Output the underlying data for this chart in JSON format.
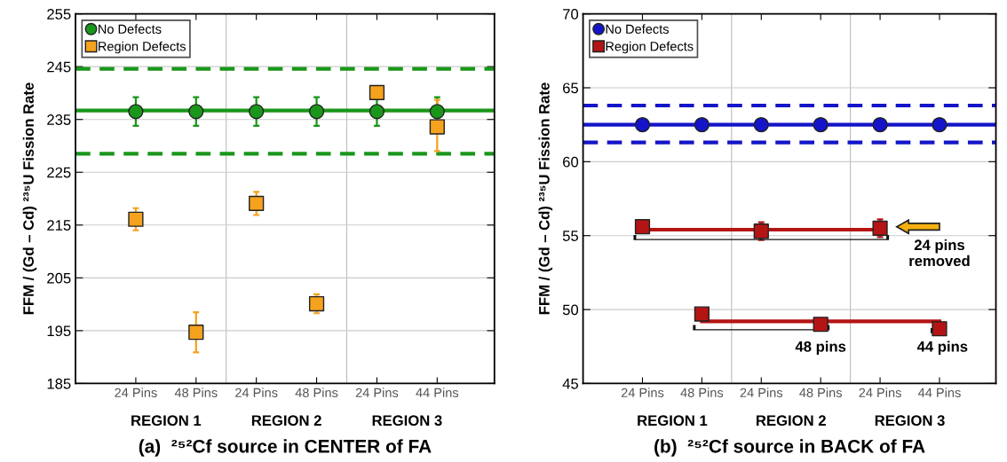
{
  "chart_data": [
    {
      "type": "scatter",
      "title": "(a)  ²⁵²Cf source in CENTER of FA",
      "ylabel": "FFM / (Gd – Cd) ²³⁵U Fission Rate",
      "categories": [
        "24 Pins",
        "48 Pins",
        "24 Pins",
        "48 Pins",
        "24 Pins",
        "44 Pins"
      ],
      "series": [
        {
          "name": "No Defects",
          "color": "#1a961a",
          "marker": "circle",
          "values": [
            236.5,
            236.5,
            236.5,
            236.5,
            236.5,
            236.5
          ],
          "errors": [
            2.7,
            2.7,
            2.7,
            2.7,
            2.7,
            2.7
          ]
        },
        {
          "name": "Region Defects",
          "color": "#f5a21e",
          "marker": "square",
          "values": [
            216.1,
            194.7,
            219.1,
            200.1,
            240.1,
            233.6
          ],
          "errors": [
            2.1,
            3.8,
            2.2,
            1.8,
            null,
            [
              229.0,
              238.7
            ]
          ]
        }
      ],
      "ref_lines": [
        {
          "axis": "y",
          "value": 236.7,
          "color": "#1a961a",
          "line_style": "solid"
        },
        {
          "axis": "y",
          "value": 244.6,
          "color": "#1a961a",
          "line_style": "dashed"
        },
        {
          "axis": "y",
          "value": 228.5,
          "color": "#1a961a",
          "line_style": "dashed"
        }
      ],
      "ylim": [
        185,
        255
      ],
      "yticks": [
        185,
        195,
        205,
        215,
        225,
        235,
        245,
        255
      ],
      "grid": "y",
      "legend": "top left",
      "annotations": [
        "REGION 1",
        "REGION 2",
        "REGION 3"
      ]
    },
    {
      "type": "scatter",
      "title": "(b)  ²⁵²Cf source in BACK of FA",
      "ylabel": "FFM / (Gd – Cd) ²³⁵U Fission Rate",
      "categories": [
        "24 Pins",
        "48 Pins",
        "24 Pins",
        "48 Pins",
        "24 Pins",
        "44 Pins"
      ],
      "series": [
        {
          "name": "No Defects",
          "color": "#1414c8",
          "marker": "circle",
          "values": [
            62.5,
            62.5,
            62.5,
            62.5,
            62.5,
            62.5
          ]
        },
        {
          "name": "Region Defects",
          "color": "#b41414",
          "marker": "square",
          "values": [
            55.6,
            49.7,
            55.3,
            49.0,
            55.5,
            48.7
          ],
          "errors": [
            null,
            null,
            0.6,
            null,
            0.6,
            null
          ]
        },
        {
          "type": "line",
          "color": "#b41414",
          "values": [
            55.4,
            null,
            55.4,
            null,
            55.4,
            null
          ]
        },
        {
          "type": "line",
          "color": "#b41414",
          "values": [
            null,
            49.2,
            null,
            49.2,
            null,
            49.2
          ]
        }
      ],
      "ref_lines": [
        {
          "axis": "y",
          "value": 62.5,
          "color": "#1414c8",
          "line_style": "solid"
        },
        {
          "axis": "y",
          "value": 63.8,
          "color": "#1414c8",
          "line_style": "dashed"
        },
        {
          "axis": "y",
          "value": 61.3,
          "color": "#1414c8",
          "line_style": "dashed"
        }
      ],
      "ylim": [
        45,
        70
      ],
      "yticks": [
        45,
        50,
        55,
        60,
        65,
        70
      ],
      "grid": "y",
      "legend": "top left",
      "annotations": [
        "REGION 1",
        "REGION 2",
        "REGION 3",
        "24 pins\nremoved",
        "48 pins",
        "44 pins"
      ]
    }
  ]
}
